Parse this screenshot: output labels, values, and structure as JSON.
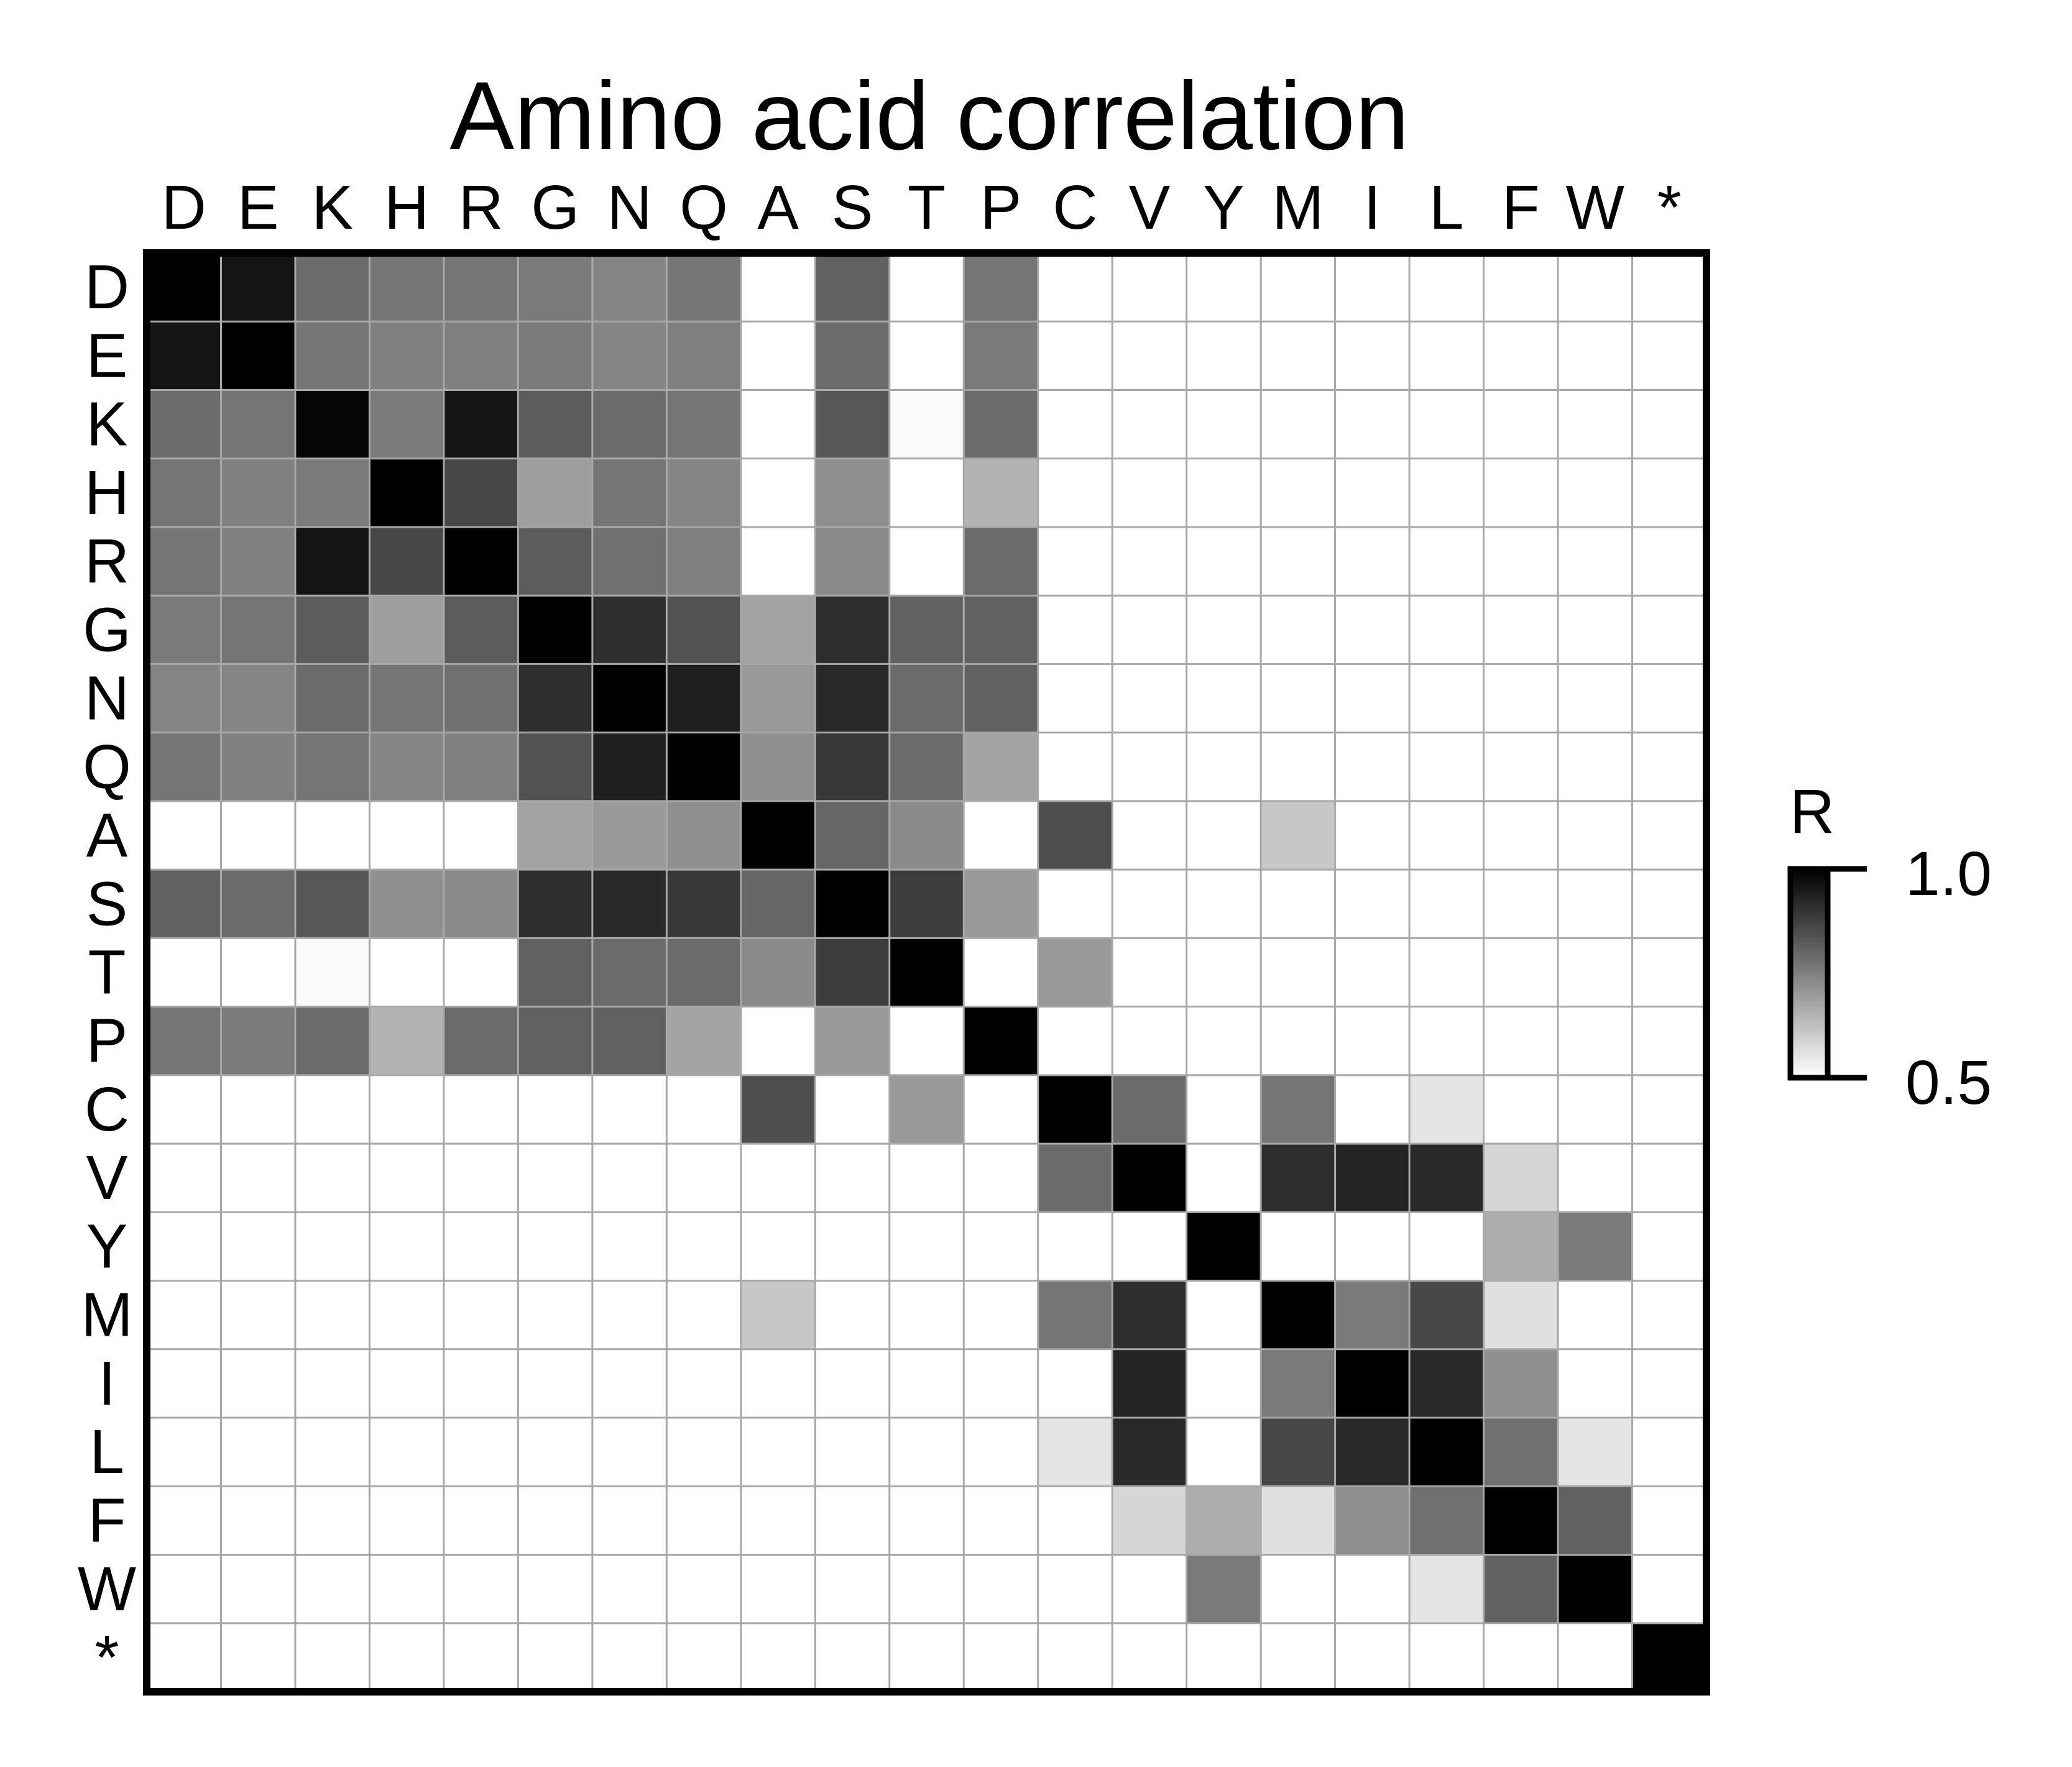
{
  "chart_data": {
    "type": "heatmap",
    "title": "Amino acid correlation",
    "x_labels": [
      "D",
      "E",
      "K",
      "H",
      "R",
      "G",
      "N",
      "Q",
      "A",
      "S",
      "T",
      "P",
      "C",
      "V",
      "Y",
      "M",
      "I",
      "L",
      "F",
      "W",
      "*"
    ],
    "y_labels": [
      "D",
      "E",
      "K",
      "H",
      "R",
      "G",
      "N",
      "Q",
      "A",
      "S",
      "T",
      "P",
      "C",
      "V",
      "Y",
      "M",
      "I",
      "L",
      "F",
      "W",
      "*"
    ],
    "values": [
      [
        1.0,
        0.96,
        0.79,
        0.77,
        0.77,
        0.76,
        0.74,
        0.77,
        0.5,
        0.81,
        0.5,
        0.77,
        0.5,
        0.5,
        0.5,
        0.5,
        0.5,
        0.5,
        0.5,
        0.5,
        0.5
      ],
      [
        0.96,
        1.0,
        0.77,
        0.75,
        0.75,
        0.76,
        0.74,
        0.75,
        0.5,
        0.79,
        0.5,
        0.76,
        0.5,
        0.5,
        0.5,
        0.5,
        0.5,
        0.5,
        0.5,
        0.5,
        0.5
      ],
      [
        0.79,
        0.77,
        0.99,
        0.76,
        0.96,
        0.82,
        0.79,
        0.77,
        0.5,
        0.83,
        0.51,
        0.79,
        0.5,
        0.5,
        0.5,
        0.5,
        0.5,
        0.5,
        0.5,
        0.5,
        0.5
      ],
      [
        0.77,
        0.75,
        0.76,
        1.0,
        0.86,
        0.69,
        0.77,
        0.74,
        0.5,
        0.72,
        0.5,
        0.65,
        0.5,
        0.5,
        0.5,
        0.5,
        0.5,
        0.5,
        0.5,
        0.5,
        0.5
      ],
      [
        0.77,
        0.75,
        0.96,
        0.86,
        1.0,
        0.82,
        0.78,
        0.75,
        0.5,
        0.73,
        0.5,
        0.79,
        0.5,
        0.5,
        0.5,
        0.5,
        0.5,
        0.5,
        0.5,
        0.5,
        0.5
      ],
      [
        0.76,
        0.77,
        0.82,
        0.69,
        0.82,
        1.0,
        0.91,
        0.84,
        0.68,
        0.91,
        0.81,
        0.81,
        0.5,
        0.5,
        0.5,
        0.5,
        0.5,
        0.5,
        0.5,
        0.5,
        0.5
      ],
      [
        0.74,
        0.74,
        0.79,
        0.77,
        0.78,
        0.91,
        1.0,
        0.94,
        0.7,
        0.92,
        0.79,
        0.81,
        0.5,
        0.5,
        0.5,
        0.5,
        0.5,
        0.5,
        0.5,
        0.5,
        0.5
      ],
      [
        0.77,
        0.75,
        0.77,
        0.74,
        0.75,
        0.84,
        0.94,
        1.0,
        0.72,
        0.89,
        0.79,
        0.68,
        0.5,
        0.5,
        0.5,
        0.5,
        0.5,
        0.5,
        0.5,
        0.5,
        0.5
      ],
      [
        0.5,
        0.5,
        0.5,
        0.5,
        0.5,
        0.68,
        0.7,
        0.72,
        1.0,
        0.8,
        0.73,
        0.5,
        0.85,
        0.5,
        0.5,
        0.61,
        0.5,
        0.5,
        0.5,
        0.5,
        0.5
      ],
      [
        0.81,
        0.79,
        0.83,
        0.72,
        0.73,
        0.91,
        0.92,
        0.89,
        0.8,
        1.0,
        0.88,
        0.7,
        0.5,
        0.5,
        0.5,
        0.5,
        0.5,
        0.5,
        0.5,
        0.5,
        0.5
      ],
      [
        0.5,
        0.5,
        0.51,
        0.5,
        0.5,
        0.81,
        0.79,
        0.79,
        0.73,
        0.88,
        1.0,
        0.5,
        0.7,
        0.5,
        0.5,
        0.5,
        0.5,
        0.5,
        0.5,
        0.5,
        0.5
      ],
      [
        0.77,
        0.76,
        0.79,
        0.65,
        0.79,
        0.81,
        0.81,
        0.68,
        0.5,
        0.7,
        0.5,
        1.0,
        0.5,
        0.5,
        0.5,
        0.5,
        0.5,
        0.5,
        0.5,
        0.5,
        0.5
      ],
      [
        0.5,
        0.5,
        0.5,
        0.5,
        0.5,
        0.5,
        0.5,
        0.5,
        0.85,
        0.5,
        0.7,
        0.5,
        1.0,
        0.79,
        0.5,
        0.77,
        0.5,
        0.55,
        0.5,
        0.5,
        0.5
      ],
      [
        0.5,
        0.5,
        0.5,
        0.5,
        0.5,
        0.5,
        0.5,
        0.5,
        0.5,
        0.5,
        0.5,
        0.5,
        0.79,
        1.0,
        0.5,
        0.91,
        0.93,
        0.92,
        0.58,
        0.5,
        0.5
      ],
      [
        0.5,
        0.5,
        0.5,
        0.5,
        0.5,
        0.5,
        0.5,
        0.5,
        0.5,
        0.5,
        0.5,
        0.5,
        0.5,
        0.5,
        1.0,
        0.5,
        0.5,
        0.5,
        0.66,
        0.76,
        0.5
      ],
      [
        0.5,
        0.5,
        0.5,
        0.5,
        0.5,
        0.5,
        0.5,
        0.5,
        0.61,
        0.5,
        0.5,
        0.5,
        0.77,
        0.91,
        0.5,
        1.0,
        0.76,
        0.86,
        0.56,
        0.5,
        0.5
      ],
      [
        0.5,
        0.5,
        0.5,
        0.5,
        0.5,
        0.5,
        0.5,
        0.5,
        0.5,
        0.5,
        0.5,
        0.5,
        0.5,
        0.93,
        0.5,
        0.76,
        1.0,
        0.92,
        0.72,
        0.5,
        0.5
      ],
      [
        0.5,
        0.5,
        0.5,
        0.5,
        0.5,
        0.5,
        0.5,
        0.5,
        0.5,
        0.5,
        0.5,
        0.5,
        0.55,
        0.92,
        0.5,
        0.86,
        0.92,
        1.0,
        0.78,
        0.55,
        0.5
      ],
      [
        0.5,
        0.5,
        0.5,
        0.5,
        0.5,
        0.5,
        0.5,
        0.5,
        0.5,
        0.5,
        0.5,
        0.5,
        0.5,
        0.58,
        0.66,
        0.56,
        0.72,
        0.78,
        1.0,
        0.81,
        0.5
      ],
      [
        0.5,
        0.5,
        0.5,
        0.5,
        0.5,
        0.5,
        0.5,
        0.5,
        0.5,
        0.5,
        0.5,
        0.5,
        0.5,
        0.5,
        0.76,
        0.5,
        0.5,
        0.55,
        0.81,
        1.0,
        0.5
      ],
      [
        0.5,
        0.5,
        0.5,
        0.5,
        0.5,
        0.5,
        0.5,
        0.5,
        0.5,
        0.5,
        0.5,
        0.5,
        0.5,
        0.5,
        0.5,
        0.5,
        0.5,
        0.5,
        0.5,
        0.5,
        1.0
      ]
    ],
    "colorbar": {
      "label": "R",
      "min": 0.5,
      "max": 1.0,
      "min_label": "0.5",
      "max_label": "1.0",
      "colormap": "grayscale (black = high, white = low)"
    },
    "grid": true,
    "colors": {
      "high": "#000000",
      "low": "#ffffff",
      "gridline": "#a8a8a8",
      "frame": "#000000"
    }
  }
}
